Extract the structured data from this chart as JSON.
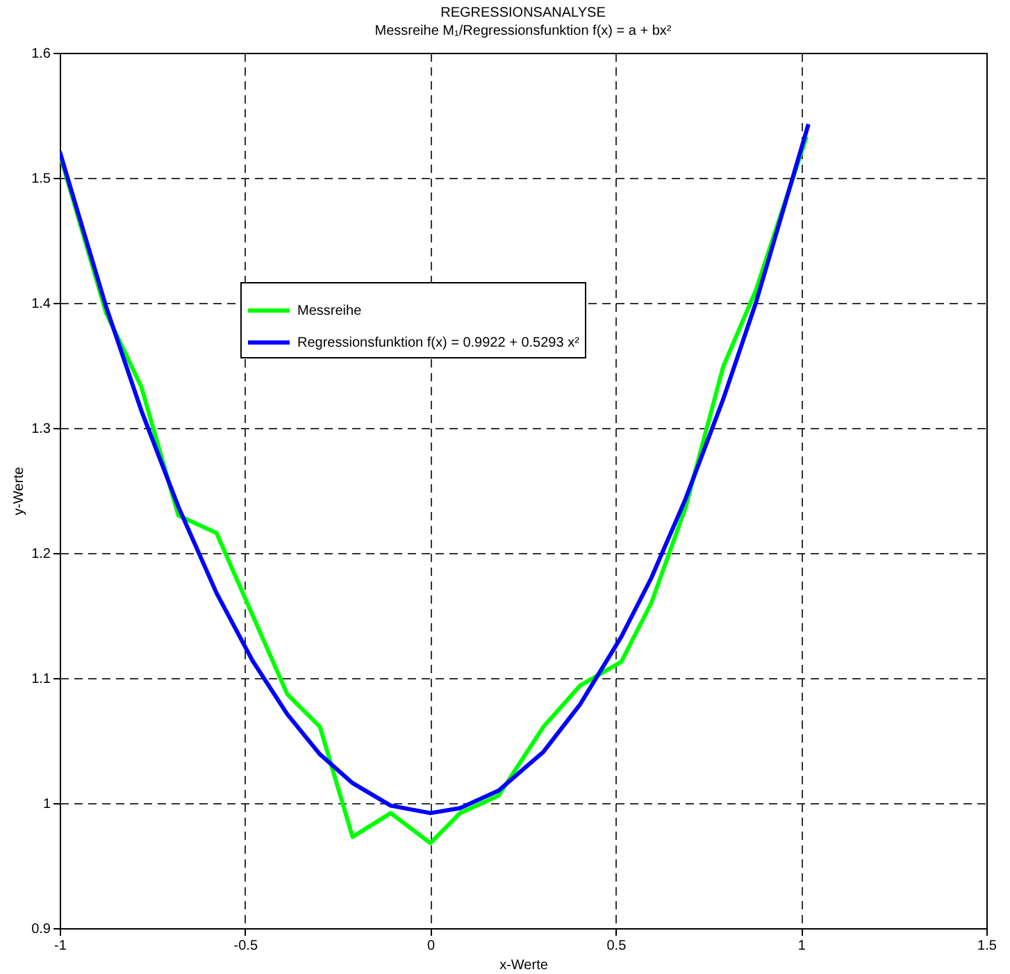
{
  "chart_data": {
    "type": "line",
    "title": "REGRESSIONSANALYSE",
    "subtitle": "Messreihe M₁/Regressionsfunktion f(x) = a + bx²",
    "xlabel": "x-Werte",
    "ylabel": "y-Werte",
    "xlim": [
      -1,
      1.5
    ],
    "xticks": [
      -1,
      -0.5,
      0,
      0.5,
      1,
      1.5
    ],
    "ylim": [
      0.9,
      1.6
    ],
    "yticks": [
      0.9,
      1,
      1.1,
      1.2,
      1.3,
      1.4,
      1.5,
      1.6
    ],
    "grid": true,
    "legend": "top left",
    "marker": "none",
    "line_style": "solid",
    "series": [
      {
        "name": "Messreihe",
        "color": "#00ff00",
        "x": [
          -1,
          -0.875,
          -0.78,
          -0.68,
          -0.577,
          -0.386,
          -0.298,
          -0.21,
          -0.107,
          0,
          0.08,
          0.184,
          0.305,
          0.404,
          0.515,
          0.596,
          0.688,
          0.79,
          0.878,
          1.015
        ],
        "values": [
          1.519,
          1.392,
          1.333,
          1.23,
          1.216,
          1.087,
          1.061,
          0.973,
          0.992,
          0.968,
          0.992,
          1.006,
          1.061,
          1.094,
          1.113,
          1.16,
          1.236,
          1.349,
          1.41,
          1.533
        ]
      },
      {
        "name": "Regressionsfunktion f(x) = 0.9922 + 0.5293 x²",
        "color": "#0000ff",
        "x": [
          -1,
          -0.875,
          -0.78,
          -0.68,
          -0.577,
          -0.48,
          -0.386,
          -0.298,
          -0.21,
          -0.107,
          0,
          0.08,
          0.184,
          0.305,
          0.404,
          0.515,
          0.596,
          0.688,
          0.79,
          0.878,
          1.02
        ],
        "values": [
          1.521,
          1.397,
          1.314,
          1.237,
          1.168,
          1.114,
          1.071,
          1.039,
          1.016,
          0.998,
          0.992,
          0.996,
          1.01,
          1.041,
          1.079,
          1.133,
          1.18,
          1.243,
          1.323,
          1.4,
          1.543
        ]
      }
    ]
  }
}
